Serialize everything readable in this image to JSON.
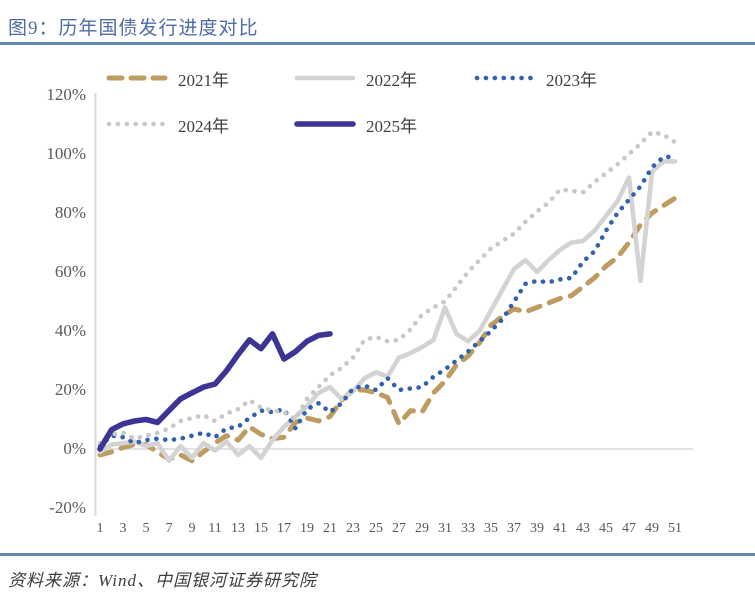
{
  "header": {
    "title": "图9：历年国债发行进度对比"
  },
  "footer": {
    "source": "资料来源：Wind、中国银河证券研究院"
  },
  "colors": {
    "title_accent": "#4e6ca6",
    "divider": "#6586ae",
    "axis_text": "#595959",
    "gridline": "#d9d9d9"
  },
  "chart_data": {
    "type": "line",
    "title": "历年国债发行进度对比",
    "xlabel": "",
    "ylabel": "",
    "ylim": [
      -20,
      120
    ],
    "grid": "zero-line-only",
    "legend_position": "top",
    "yticks": [
      "120%",
      "100%",
      "80%",
      "60%",
      "40%",
      "20%",
      "0%",
      "-20%"
    ],
    "ytick_values": [
      120,
      100,
      80,
      60,
      40,
      20,
      0,
      -20
    ],
    "xticks": [
      "1",
      "3",
      "5",
      "7",
      "9",
      "11",
      "13",
      "15",
      "17",
      "19",
      "21",
      "23",
      "25",
      "27",
      "29",
      "31",
      "33",
      "35",
      "37",
      "39",
      "41",
      "43",
      "45",
      "47",
      "49",
      "51"
    ],
    "x_weeks": 51,
    "series": [
      {
        "name": "2021年",
        "color": "#be9b60",
        "style": "dashed",
        "values": [
          -2,
          -1,
          0.5,
          1.5,
          1.5,
          -1,
          -3.5,
          -2,
          -4,
          -1,
          2,
          4.5,
          3,
          7.5,
          5,
          3.5,
          4,
          9,
          10.5,
          9.5,
          11,
          16.5,
          20,
          20,
          19,
          17.5,
          8.5,
          13,
          12.5,
          19,
          23,
          28.5,
          31.5,
          36,
          42,
          45,
          47.5,
          46.5,
          48,
          49.5,
          51,
          52,
          55,
          58,
          62,
          65,
          70,
          76,
          80,
          82.5,
          85
        ]
      },
      {
        "name": "2022年",
        "color": "#d3d3d3",
        "style": "solid",
        "values": [
          -1,
          1.5,
          2,
          2.5,
          1,
          2,
          -4,
          1,
          -3,
          2,
          -0.5,
          2.5,
          -2,
          1,
          -3,
          3,
          7.5,
          11,
          14.5,
          19,
          21,
          17,
          19.5,
          24,
          26,
          24.5,
          31,
          32.5,
          34.5,
          37,
          48,
          39,
          36.5,
          40,
          47,
          54,
          61,
          64,
          60,
          64,
          67.5,
          70,
          70.5,
          74,
          79,
          84,
          92,
          57,
          94,
          97.5,
          97.5
        ]
      },
      {
        "name": "2023年",
        "color": "#3262ad",
        "style": "dotted",
        "values": [
          1,
          4.5,
          4,
          2,
          3,
          3.5,
          3,
          3.5,
          4.5,
          5.5,
          4,
          7,
          7.5,
          10.5,
          13,
          12.5,
          13.5,
          7,
          13.5,
          15.5,
          12.5,
          15.5,
          20.5,
          21.5,
          20,
          24,
          20,
          20.5,
          21,
          24.5,
          27,
          30,
          33,
          36.5,
          40,
          44,
          50,
          56,
          57,
          56.5,
          57.5,
          58,
          63.5,
          67,
          74,
          80,
          84.5,
          89,
          95.5,
          99,
          99
        ]
      },
      {
        "name": "2024年",
        "color": "#c8c8c8",
        "style": "dotted",
        "values": [
          2,
          5,
          5.5,
          3.5,
          4.5,
          5.5,
          7,
          9.5,
          10.5,
          11.5,
          9.5,
          12,
          13.5,
          16.5,
          14,
          13,
          12.5,
          10,
          17,
          21,
          25,
          27.5,
          31,
          37,
          38,
          36.5,
          37,
          40.5,
          45.5,
          48,
          50,
          55,
          60,
          64,
          68,
          70.5,
          73,
          77,
          80.5,
          83.5,
          88,
          87.5,
          87,
          90.5,
          93.5,
          96.5,
          100,
          103.5,
          107.5,
          106.5,
          104
        ]
      },
      {
        "name": "2025年",
        "color": "#3d3493",
        "style": "solid-thick",
        "values": [
          0,
          6.5,
          8.5,
          9.5,
          10,
          9,
          13,
          17,
          19,
          21,
          22,
          26.5,
          32,
          37,
          34,
          39,
          30.5,
          33,
          36.5,
          38.5,
          39
        ]
      }
    ]
  }
}
